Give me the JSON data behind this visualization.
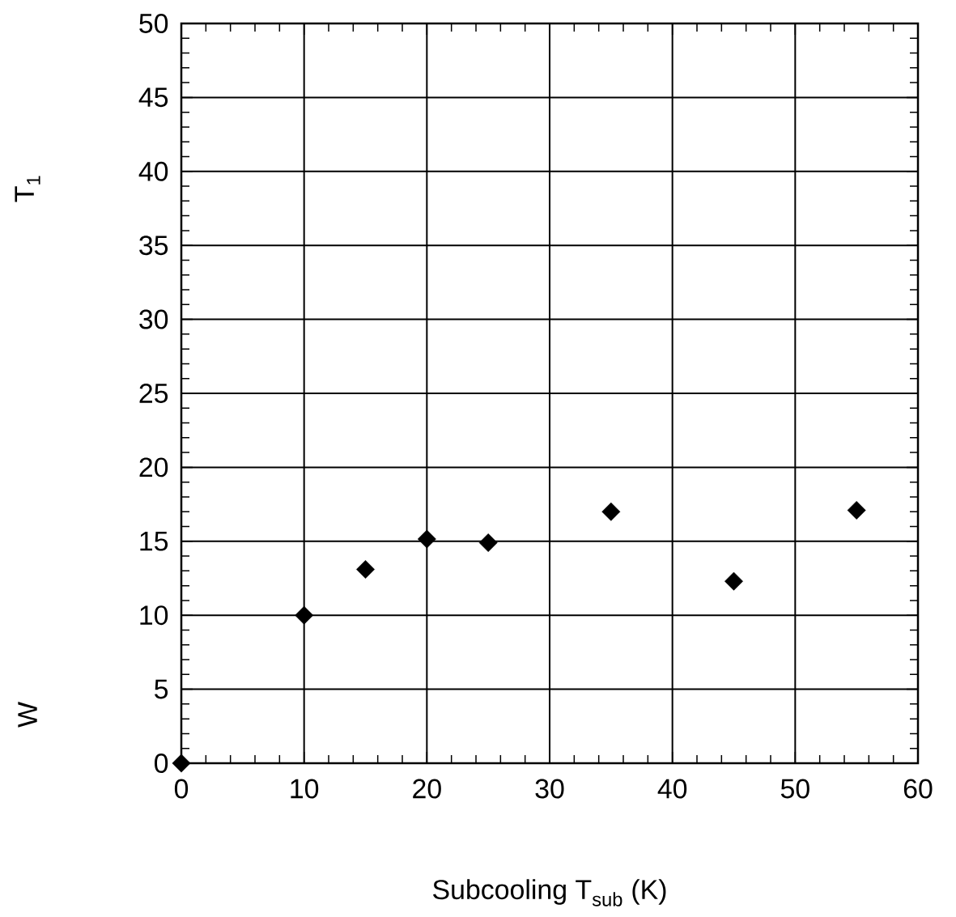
{
  "chart_data": {
    "type": "scatter",
    "xlabel": "Subcooling T$_{sub}$ (K)",
    "ylabel": "T$_{1}$",
    "annotations": [
      "W"
    ],
    "x": [
      0,
      10,
      15,
      20,
      25,
      35,
      45,
      55
    ],
    "series": [
      {
        "color": "#000000",
        "values": [
          0,
          10,
          13.1,
          15.15,
          14.9,
          17,
          12.3,
          17.1
        ]
      }
    ],
    "xlim": [
      0,
      60
    ],
    "ylim": [
      0,
      50
    ],
    "xticks": [
      0,
      10,
      20,
      30,
      40,
      50,
      60
    ],
    "yticks": [
      0,
      5,
      10,
      15,
      20,
      25,
      30,
      35,
      40,
      45,
      50
    ],
    "grid": true,
    "marker": "diamond"
  }
}
